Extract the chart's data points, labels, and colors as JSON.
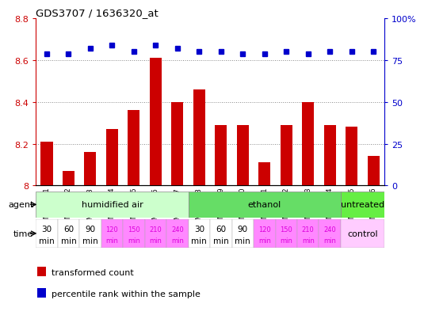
{
  "title": "GDS3707 / 1636320_at",
  "samples": [
    "GSM455231",
    "GSM455232",
    "GSM455233",
    "GSM455234",
    "GSM455235",
    "GSM455236",
    "GSM455237",
    "GSM455238",
    "GSM455239",
    "GSM455240",
    "GSM455241",
    "GSM455242",
    "GSM455243",
    "GSM455244",
    "GSM455245",
    "GSM455246"
  ],
  "bar_values": [
    8.21,
    8.07,
    8.16,
    8.27,
    8.36,
    8.61,
    8.4,
    8.46,
    8.29,
    8.29,
    8.11,
    8.29,
    8.4,
    8.29,
    8.28,
    8.14
  ],
  "percentile_values": [
    79,
    79,
    82,
    84,
    80,
    84,
    82,
    80,
    80,
    79,
    79,
    80,
    79,
    80,
    80,
    80
  ],
  "ylim_left": [
    8.0,
    8.8
  ],
  "ylim_right": [
    0,
    100
  ],
  "bar_color": "#cc0000",
  "dot_color": "#0000cc",
  "bar_width": 0.55,
  "label_color_red": "#cc0000",
  "label_color_blue": "#0000cc",
  "agent_rows": [
    {
      "label": "humidified air",
      "start": 0,
      "end": 7,
      "color": "#ccffcc"
    },
    {
      "label": "ethanol",
      "start": 7,
      "end": 14,
      "color": "#66dd66"
    },
    {
      "label": "untreated",
      "start": 14,
      "end": 16,
      "color": "#66ee44"
    }
  ],
  "time_minutes": [
    30,
    60,
    90,
    120,
    150,
    210,
    240,
    30,
    60,
    90,
    120,
    150,
    210,
    240
  ],
  "time_colors": [
    "#ffffff",
    "#ffffff",
    "#ffffff",
    "#ff88ff",
    "#ff88ff",
    "#ff88ff",
    "#ff88ff",
    "#ffffff",
    "#ffffff",
    "#ffffff",
    "#ff88ff",
    "#ff88ff",
    "#ff88ff",
    "#ff88ff"
  ],
  "time_text_colors": [
    "#000000",
    "#000000",
    "#000000",
    "#dd00dd",
    "#dd00dd",
    "#dd00dd",
    "#dd00dd",
    "#000000",
    "#000000",
    "#000000",
    "#dd00dd",
    "#dd00dd",
    "#dd00dd",
    "#dd00dd"
  ],
  "control_color": "#ffccff",
  "legend_red_label": "transformed count",
  "legend_blue_label": "percentile rank within the sample"
}
